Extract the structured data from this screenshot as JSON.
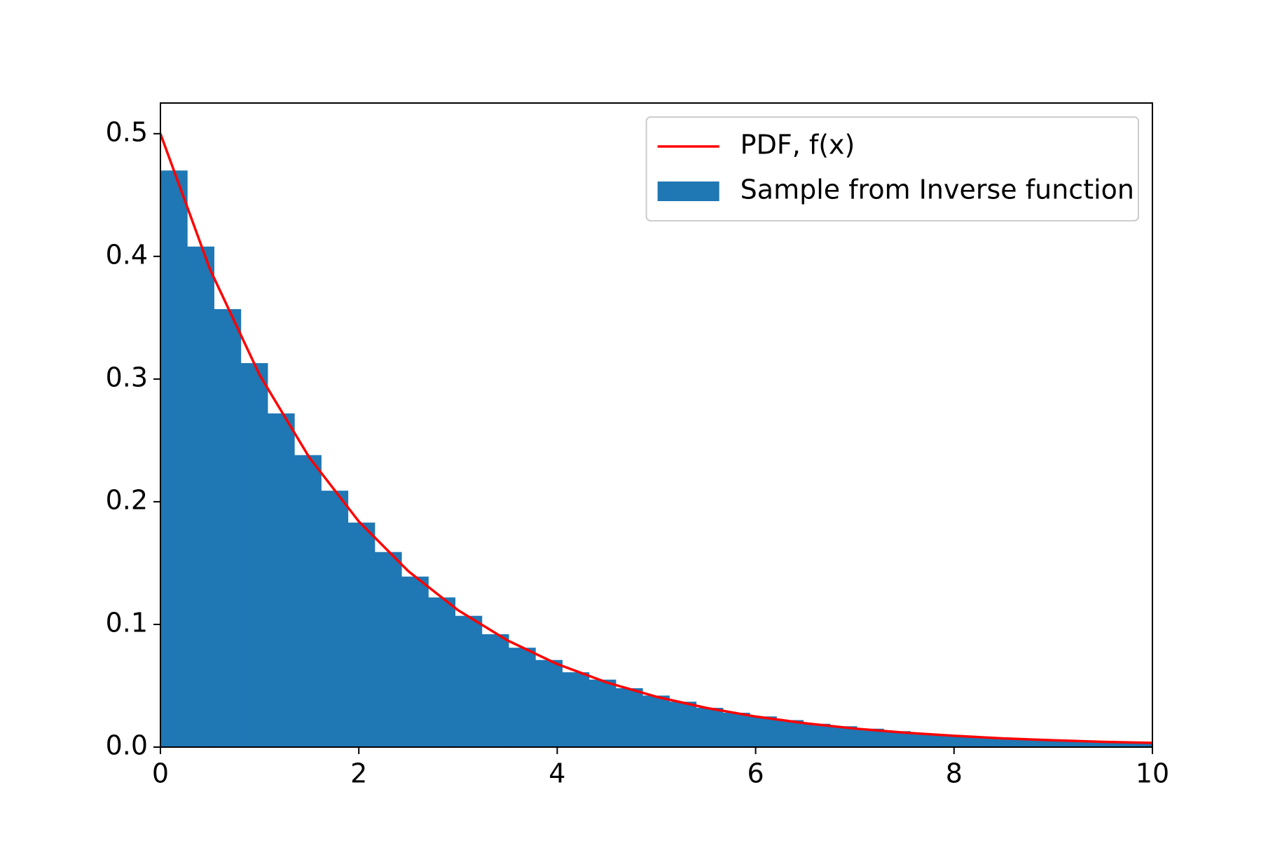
{
  "chart_data": {
    "type": "histogram",
    "xlim": [
      0,
      10
    ],
    "ylim": [
      0,
      0.525
    ],
    "xticks": [
      0,
      2,
      4,
      6,
      8,
      10
    ],
    "yticks": [
      {
        "value": 0,
        "label": "0.0"
      },
      0.1,
      0.2,
      0.3,
      0.4,
      0.5
    ],
    "grid": false,
    "legend": "upper right",
    "series": [
      {
        "type": "line",
        "name": "PDF, f(x)",
        "color": "#ff0000",
        "x": [
          0,
          0.5,
          1,
          1.5,
          2,
          2.5,
          3,
          3.5,
          4,
          4.5,
          5,
          5.5,
          6,
          6.5,
          7,
          7.5,
          8,
          8.5,
          9,
          9.5,
          10
        ],
        "values": [
          0.5,
          0.3894,
          0.3033,
          0.2362,
          0.1839,
          0.1433,
          0.1116,
          0.0869,
          0.0677,
          0.0527,
          0.041,
          0.032,
          0.0249,
          0.0194,
          0.0151,
          0.0118,
          0.0092,
          0.0071,
          0.0056,
          0.0043,
          0.0034
        ]
      },
      {
        "type": "histogram",
        "name": "Sample from Inverse function",
        "color": "#1f77b4",
        "bins": [
          0,
          0.27,
          0.54,
          0.81,
          1.08,
          1.35,
          1.62,
          1.89,
          2.16,
          2.43,
          2.7,
          2.97,
          3.24,
          3.51,
          3.78,
          4.05,
          4.32,
          4.59,
          4.86,
          5.13,
          5.4,
          5.67,
          5.94,
          6.21,
          6.48,
          6.75,
          7.02,
          7.29,
          7.56,
          7.83,
          8.1,
          8.37,
          8.64,
          8.91,
          9.18,
          9.45,
          9.72,
          9.99
        ],
        "values": [
          0.47,
          0.408,
          0.357,
          0.313,
          0.272,
          0.238,
          0.209,
          0.183,
          0.159,
          0.139,
          0.122,
          0.107,
          0.092,
          0.081,
          0.071,
          0.061,
          0.055,
          0.048,
          0.042,
          0.037,
          0.032,
          0.028,
          0.025,
          0.022,
          0.019,
          0.017,
          0.015,
          0.013,
          0.011,
          0.0098,
          0.0086,
          0.0075,
          0.0066,
          0.0057,
          0.005,
          0.0044,
          0.0039
        ]
      }
    ]
  }
}
